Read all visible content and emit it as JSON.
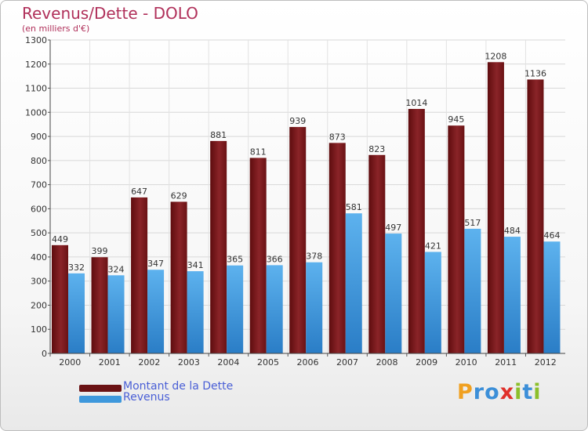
{
  "title": "Revenus/Dette - DOLO",
  "subtitle": "(en milliers d'€)",
  "logo": {
    "letters": [
      {
        "char": "P",
        "color": "#f0a020"
      },
      {
        "char": "r",
        "color": "#3c8fd8"
      },
      {
        "char": "o",
        "color": "#3c8fd8"
      },
      {
        "char": "x",
        "color": "#e0302a"
      },
      {
        "char": "i",
        "color": "#8cbf2a"
      },
      {
        "char": "t",
        "color": "#3c8fd8"
      },
      {
        "char": "i",
        "color": "#8cbf2a"
      }
    ]
  },
  "chart_data": {
    "type": "bar",
    "categories": [
      "2000",
      "2001",
      "2002",
      "2003",
      "2004",
      "2005",
      "2006",
      "2007",
      "2008",
      "2009",
      "2010",
      "2011",
      "2012"
    ],
    "series": [
      {
        "name": "Montant de la Dette",
        "color": "#7a1416",
        "values": [
          449,
          399,
          647,
          629,
          881,
          811,
          939,
          873,
          823,
          1014,
          945,
          1208,
          1136
        ]
      },
      {
        "name": "Revenus",
        "color": "#3e98dc",
        "values": [
          332,
          324,
          347,
          341,
          365,
          366,
          378,
          581,
          497,
          421,
          517,
          484,
          464
        ]
      }
    ],
    "ylim": [
      0,
      1300
    ],
    "yticks": [
      0,
      100,
      200,
      300,
      400,
      500,
      600,
      700,
      800,
      900,
      1000,
      1100,
      1200,
      1300
    ],
    "grid": true,
    "legend_position": "bottom-left"
  }
}
